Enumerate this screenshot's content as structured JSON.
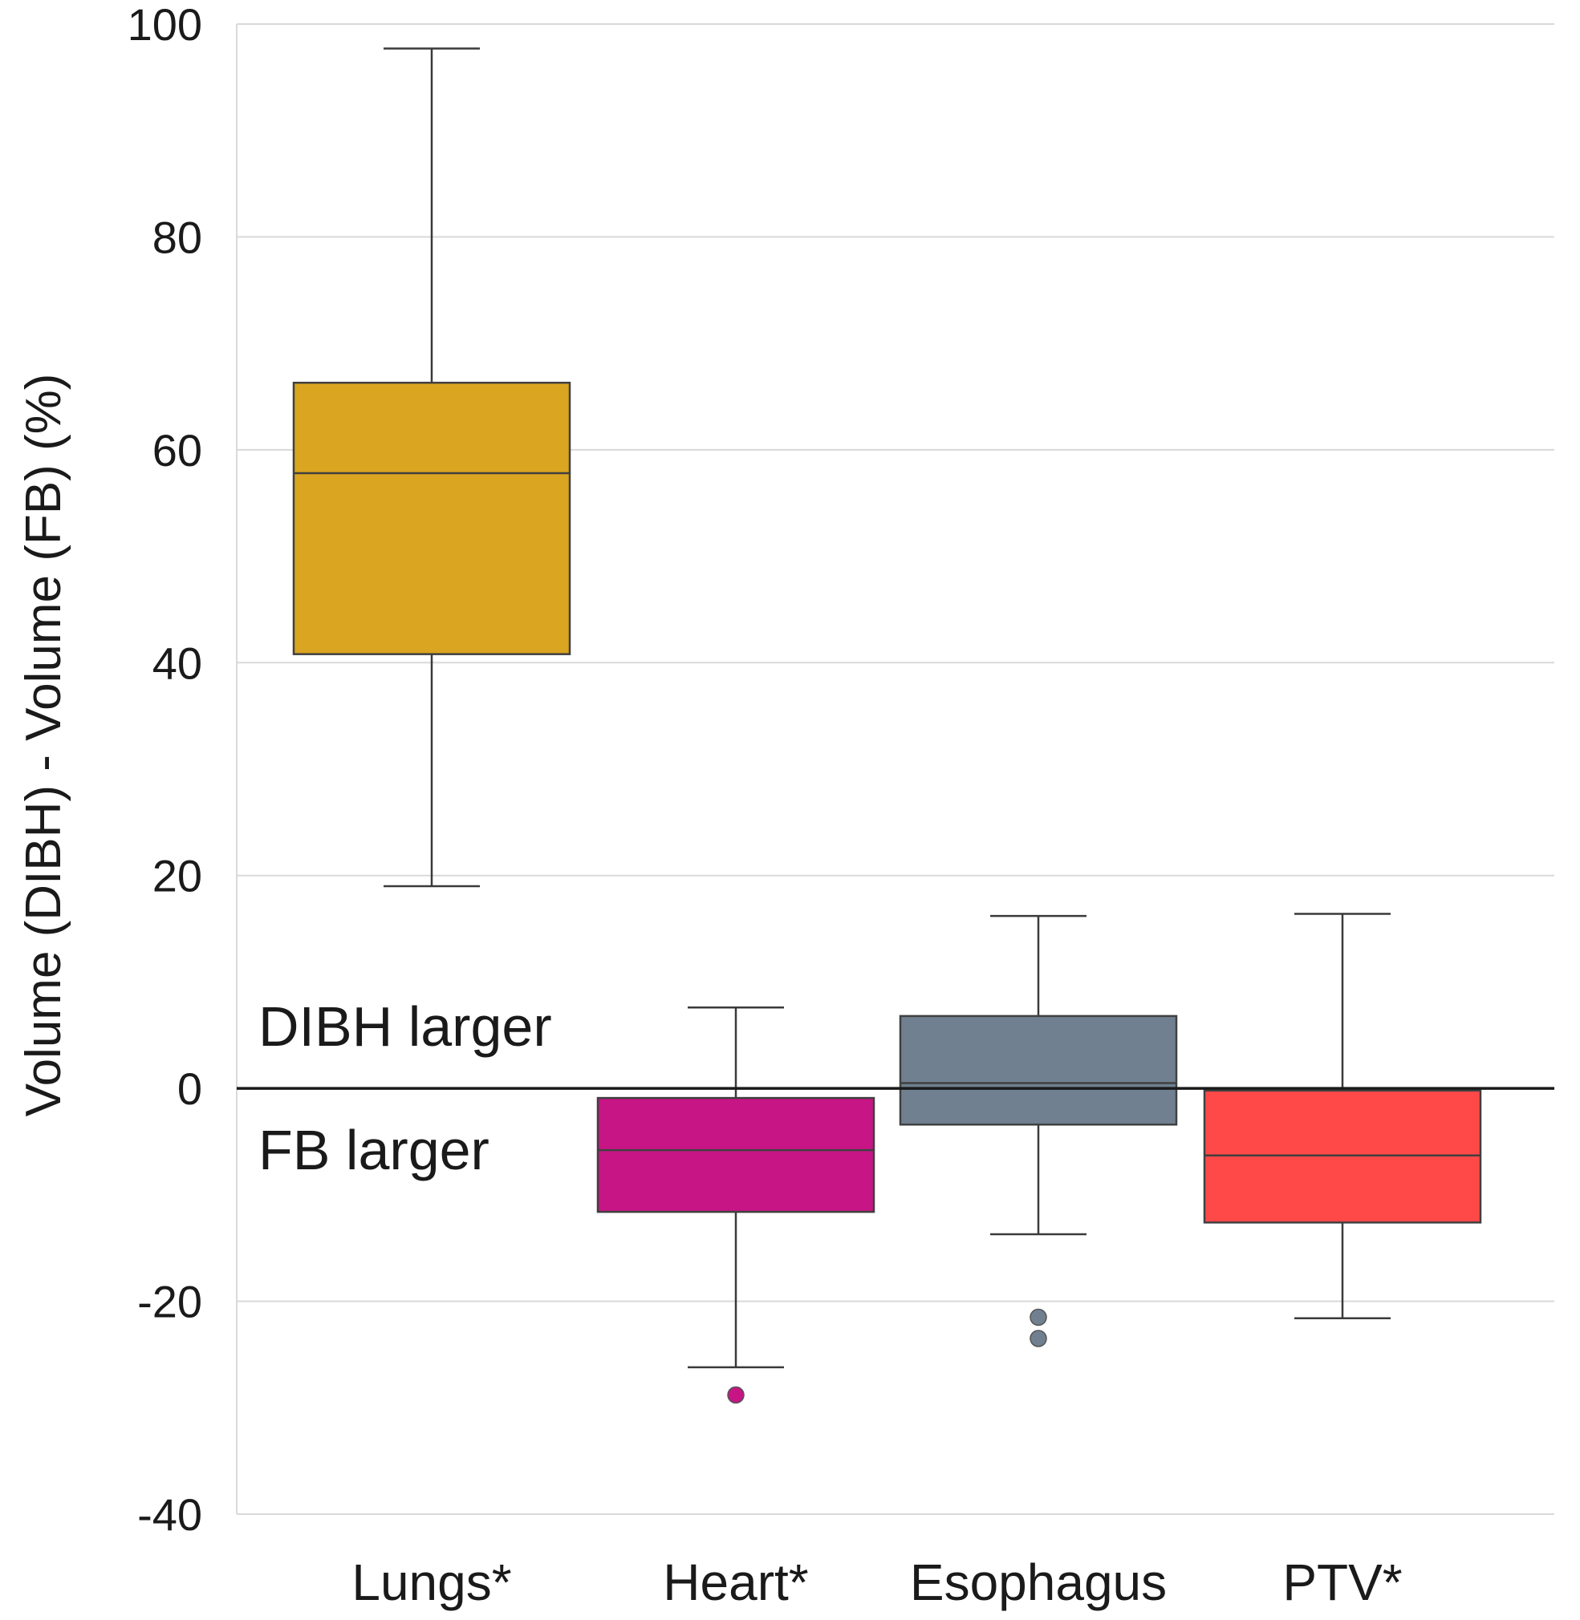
{
  "chart_data": {
    "type": "boxplot",
    "title": "",
    "xlabel": "",
    "ylabel": "Volume (DIBH) - Volume (FB) (%)",
    "ylim": [
      -40,
      100
    ],
    "yticks": [
      -40,
      -20,
      0,
      20,
      40,
      60,
      80,
      100
    ],
    "ytick_labels": [
      "-40",
      "-20",
      "0",
      "20",
      "40",
      "60",
      "80",
      "100"
    ],
    "grid": true,
    "reference_line": 0,
    "categories": [
      "Lungs*",
      "Heart*",
      "Esophagus",
      "PTV*"
    ],
    "boxes": [
      {
        "name": "Lungs*",
        "whisker_low": 19.0,
        "q1": 40.8,
        "median": 57.8,
        "q3": 66.3,
        "whisker_high": 97.7,
        "outliers": [],
        "color": "#DAA520"
      },
      {
        "name": "Heart*",
        "whisker_low": -26.2,
        "q1": -11.6,
        "median": -5.8,
        "q3": -0.9,
        "whisker_high": 7.6,
        "outliers": [
          -28.8
        ],
        "color": "#C71585"
      },
      {
        "name": "Esophagus",
        "whisker_low": -13.7,
        "q1": -3.4,
        "median": 0.5,
        "q3": 6.8,
        "whisker_high": 16.2,
        "outliers": [
          -21.5,
          -23.5
        ],
        "color": "#708090"
      },
      {
        "name": "PTV*",
        "whisker_low": -21.6,
        "q1": -12.6,
        "median": -6.3,
        "q3": -0.2,
        "whisker_high": 16.4,
        "outliers": [],
        "color": "#FF4848"
      }
    ],
    "annotations": [
      {
        "text": "DIBH larger",
        "y": 5.8
      },
      {
        "text": "FB larger",
        "y": -5.8
      }
    ]
  }
}
